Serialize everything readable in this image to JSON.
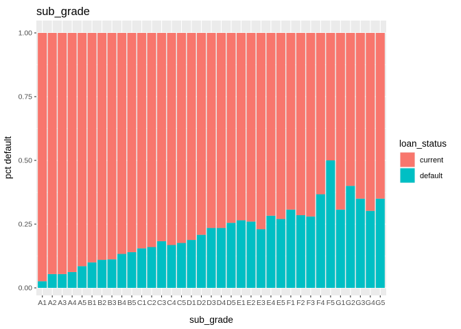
{
  "chart_data": {
    "type": "bar",
    "stacked": true,
    "title": "sub_grade",
    "xlabel": "sub_grade",
    "ylabel": "pct default",
    "ylim": [
      0,
      1
    ],
    "yticks": [
      "0.00",
      "0.25",
      "0.50",
      "0.75",
      "1.00"
    ],
    "grid": true,
    "legend": {
      "title": "loan_status",
      "position": "right",
      "entries": [
        {
          "label": "current",
          "color": "#F8766D"
        },
        {
          "label": "default",
          "color": "#00BFC4"
        }
      ]
    },
    "categories": [
      "A1",
      "A2",
      "A3",
      "A4",
      "A5",
      "B1",
      "B2",
      "B3",
      "B4",
      "B5",
      "C1",
      "C2",
      "C3",
      "C4",
      "C5",
      "D1",
      "D2",
      "D3",
      "D4",
      "D5",
      "E1",
      "E2",
      "E3",
      "E4",
      "E5",
      "F1",
      "F2",
      "F3",
      "F4",
      "F5",
      "G1",
      "G2",
      "G3",
      "G4",
      "G5"
    ],
    "series": [
      {
        "name": "default",
        "color": "#00BFC4",
        "values": [
          0.026,
          0.054,
          0.054,
          0.062,
          0.085,
          0.1,
          0.11,
          0.112,
          0.133,
          0.14,
          0.155,
          0.16,
          0.183,
          0.168,
          0.176,
          0.188,
          0.208,
          0.235,
          0.235,
          0.255,
          0.265,
          0.26,
          0.23,
          0.283,
          0.27,
          0.307,
          0.285,
          0.28,
          0.367,
          0.5,
          0.307,
          0.4,
          0.35,
          0.302,
          0.35
        ]
      },
      {
        "name": "current",
        "color": "#F8766D",
        "values": [
          0.974,
          0.946,
          0.946,
          0.938,
          0.915,
          0.9,
          0.89,
          0.888,
          0.867,
          0.86,
          0.845,
          0.84,
          0.817,
          0.832,
          0.824,
          0.812,
          0.792,
          0.765,
          0.765,
          0.745,
          0.735,
          0.74,
          0.77,
          0.717,
          0.73,
          0.693,
          0.715,
          0.72,
          0.633,
          0.5,
          0.693,
          0.6,
          0.65,
          0.698,
          0.65
        ]
      }
    ]
  }
}
